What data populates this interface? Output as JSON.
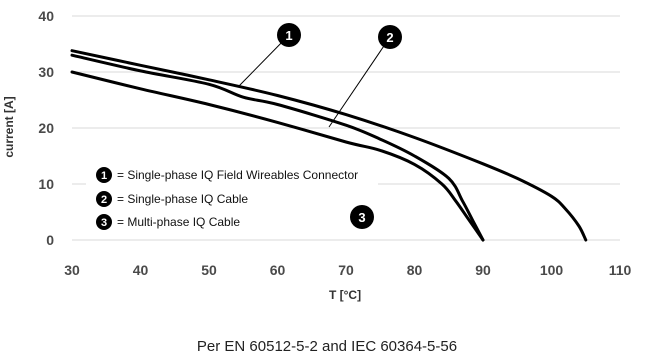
{
  "chart_data": {
    "type": "line",
    "xlabel": "T [°C]",
    "ylabel": "current [A]",
    "xlim": [
      30,
      110
    ],
    "ylim": [
      0,
      40
    ],
    "xticks": [
      30,
      40,
      50,
      60,
      70,
      80,
      90,
      100,
      110
    ],
    "yticks": [
      0,
      10,
      20,
      30,
      40
    ],
    "grid": "horizontal",
    "series": [
      {
        "name": "Single-phase IQ Field Wireables Connector",
        "marker": "1",
        "points": [
          [
            30,
            33.8
          ],
          [
            40,
            31.2
          ],
          [
            50,
            28.6
          ],
          [
            60,
            25.8
          ],
          [
            70,
            22.4
          ],
          [
            80,
            18.3
          ],
          [
            90,
            13.6
          ],
          [
            95,
            11.0
          ],
          [
            100,
            7.8
          ],
          [
            102,
            5.6
          ],
          [
            104,
            2.5
          ],
          [
            105,
            0
          ]
        ]
      },
      {
        "name": "Single-phase IQ Cable",
        "marker": "2",
        "points": [
          [
            30,
            33.0
          ],
          [
            40,
            30.2
          ],
          [
            50,
            27.8
          ],
          [
            55,
            25.5
          ],
          [
            60,
            24.2
          ],
          [
            70,
            20.5
          ],
          [
            75,
            18.0
          ],
          [
            80,
            15.0
          ],
          [
            85,
            11.0
          ],
          [
            87,
            7.0
          ],
          [
            88.5,
            3.5
          ],
          [
            90,
            0
          ]
        ]
      },
      {
        "name": "Multi-phase IQ Cable",
        "marker": "3",
        "points": [
          [
            30,
            30.0
          ],
          [
            40,
            27.0
          ],
          [
            50,
            24.2
          ],
          [
            60,
            21.0
          ],
          [
            70,
            17.5
          ],
          [
            75,
            16.0
          ],
          [
            80,
            13.5
          ],
          [
            84,
            10.0
          ],
          [
            86,
            7.0
          ],
          [
            88,
            3.5
          ],
          [
            90,
            0
          ]
        ]
      }
    ],
    "legend": {
      "placement": "bottom-left",
      "entries": [
        {
          "marker": "1",
          "text": "= Single-phase IQ Field Wireables Connector"
        },
        {
          "marker": "2",
          "text": "= Single-phase IQ Cable"
        },
        {
          "marker": "3",
          "text": "= Multi-phase IQ Cable"
        }
      ]
    },
    "callouts": [
      "1",
      "2",
      "3"
    ],
    "line_color": "#000000",
    "grid_color": "#d9d9d9"
  },
  "footnote": "Per EN 60512-5-2 and IEC 60364-5-56"
}
